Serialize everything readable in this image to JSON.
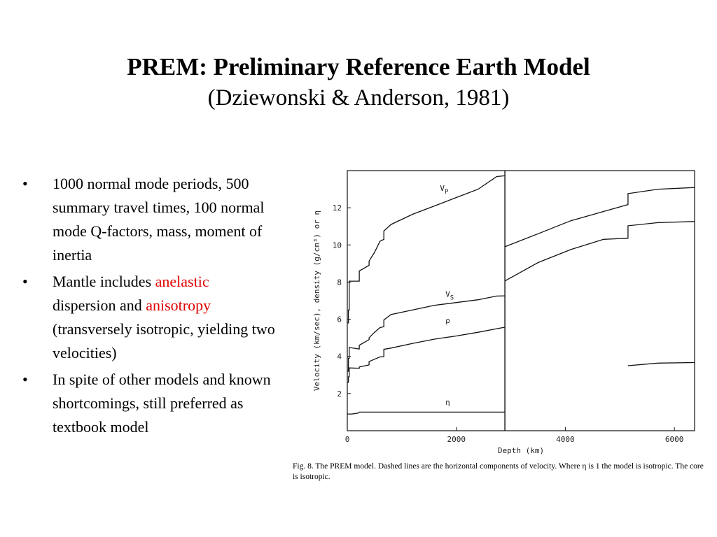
{
  "title": "PREM:  Preliminary  Reference  Earth  Model",
  "subtitle": "(Dziewonski & Anderson, 1981)",
  "bullets": [
    {
      "text": "1000 normal mode periods, 500 summary travel times, 100 normal mode Q-factors, mass, moment of inertia"
    },
    {
      "pre": "Mantle includes ",
      "hl1": "anelastic",
      "mid": " dispersion and ",
      "hl2": "anisotropy",
      "post": " (transversely isotropic, yielding two velocities)"
    },
    {
      "text": "In spite of other models and known shortcomings, still preferred as textbook model"
    }
  ],
  "colors": {
    "highlight": "#e00000"
  },
  "figure": {
    "caption": "Fig. 8. The PREM model. Dashed lines are the horizontal components of velocity. Where η is 1 the model is isotropic. The core is isotropic."
  },
  "chart_data": {
    "type": "line",
    "xlabel": "Depth (km)",
    "ylabel": "Velocity (km/sec), density (g/cm³) or η",
    "xlim": [
      0,
      6371
    ],
    "ylim": [
      0,
      14
    ],
    "xticks": [
      0,
      2000,
      4000,
      6000
    ],
    "yticks": [
      2,
      4,
      6,
      8,
      10,
      12
    ],
    "boundaries": [
      2891
    ],
    "series": [
      {
        "key": "vp",
        "label_main": "V",
        "label_sub": "P",
        "label_at": [
          1700,
          12.9
        ],
        "segments": [
          [
            [
              0,
              5.8
            ],
            [
              20,
              5.8
            ],
            [
              20,
              6.5
            ],
            [
              35,
              6.5
            ],
            [
              35,
              8.05
            ],
            [
              220,
              8.05
            ],
            [
              220,
              8.6
            ],
            [
              400,
              8.9
            ],
            [
              400,
              9.13
            ],
            [
              500,
              9.6
            ],
            [
              600,
              10.2
            ],
            [
              670,
              10.3
            ],
            [
              670,
              10.75
            ],
            [
              800,
              11.1
            ],
            [
              1200,
              11.65
            ],
            [
              1600,
              12.1
            ],
            [
              2000,
              12.55
            ],
            [
              2400,
              13.0
            ],
            [
              2741,
              13.68
            ],
            [
              2891,
              13.72
            ]
          ],
          [
            [
              2891,
              8.06
            ],
            [
              3500,
              9.05
            ],
            [
              4100,
              9.75
            ],
            [
              4700,
              10.3
            ],
            [
              5150,
              10.36
            ],
            [
              5150,
              11.03
            ],
            [
              5700,
              11.2
            ],
            [
              6371,
              11.26
            ]
          ]
        ]
      },
      {
        "key": "vs",
        "label_main": "V",
        "label_sub": "S",
        "label_at": [
          1800,
          7.2
        ],
        "segments": [
          [
            [
              0,
              3.2
            ],
            [
              20,
              3.2
            ],
            [
              20,
              3.9
            ],
            [
              35,
              3.9
            ],
            [
              35,
              4.48
            ],
            [
              220,
              4.4
            ],
            [
              220,
              4.6
            ],
            [
              400,
              4.9
            ],
            [
              400,
              5.0
            ],
            [
              500,
              5.3
            ],
            [
              600,
              5.55
            ],
            [
              670,
              5.6
            ],
            [
              670,
              5.96
            ],
            [
              800,
              6.25
            ],
            [
              1200,
              6.5
            ],
            [
              1600,
              6.75
            ],
            [
              2000,
              6.9
            ],
            [
              2400,
              7.05
            ],
            [
              2741,
              7.25
            ],
            [
              2891,
              7.26
            ]
          ],
          [
            [
              5150,
              3.5
            ],
            [
              5700,
              3.64
            ],
            [
              6371,
              3.67
            ]
          ]
        ]
      },
      {
        "key": "rho",
        "label_main": "ρ",
        "label_sub": "",
        "label_at": [
          1800,
          5.8
        ],
        "segments": [
          [
            [
              0,
              2.6
            ],
            [
              20,
              2.6
            ],
            [
              20,
              2.9
            ],
            [
              35,
              2.9
            ],
            [
              35,
              3.38
            ],
            [
              220,
              3.36
            ],
            [
              220,
              3.43
            ],
            [
              400,
              3.54
            ],
            [
              400,
              3.72
            ],
            [
              500,
              3.85
            ],
            [
              600,
              3.97
            ],
            [
              670,
              3.99
            ],
            [
              670,
              4.38
            ],
            [
              800,
              4.45
            ],
            [
              1200,
              4.7
            ],
            [
              1600,
              4.93
            ],
            [
              2000,
              5.1
            ],
            [
              2400,
              5.3
            ],
            [
              2741,
              5.49
            ],
            [
              2891,
              5.57
            ]
          ],
          [
            [
              2891,
              9.9
            ],
            [
              3500,
              10.6
            ],
            [
              4100,
              11.3
            ],
            [
              4700,
              11.8
            ],
            [
              5150,
              12.17
            ],
            [
              5150,
              12.76
            ],
            [
              5700,
              13.0
            ],
            [
              6371,
              13.09
            ]
          ]
        ]
      },
      {
        "key": "eta",
        "label_main": "η",
        "label_sub": "",
        "label_at": [
          1800,
          1.4
        ],
        "segments": [
          [
            [
              0,
              0.9
            ],
            [
              80,
              0.9
            ],
            [
              200,
              0.95
            ],
            [
              220,
              1.0
            ],
            [
              2891,
              1.0
            ]
          ]
        ]
      }
    ]
  }
}
